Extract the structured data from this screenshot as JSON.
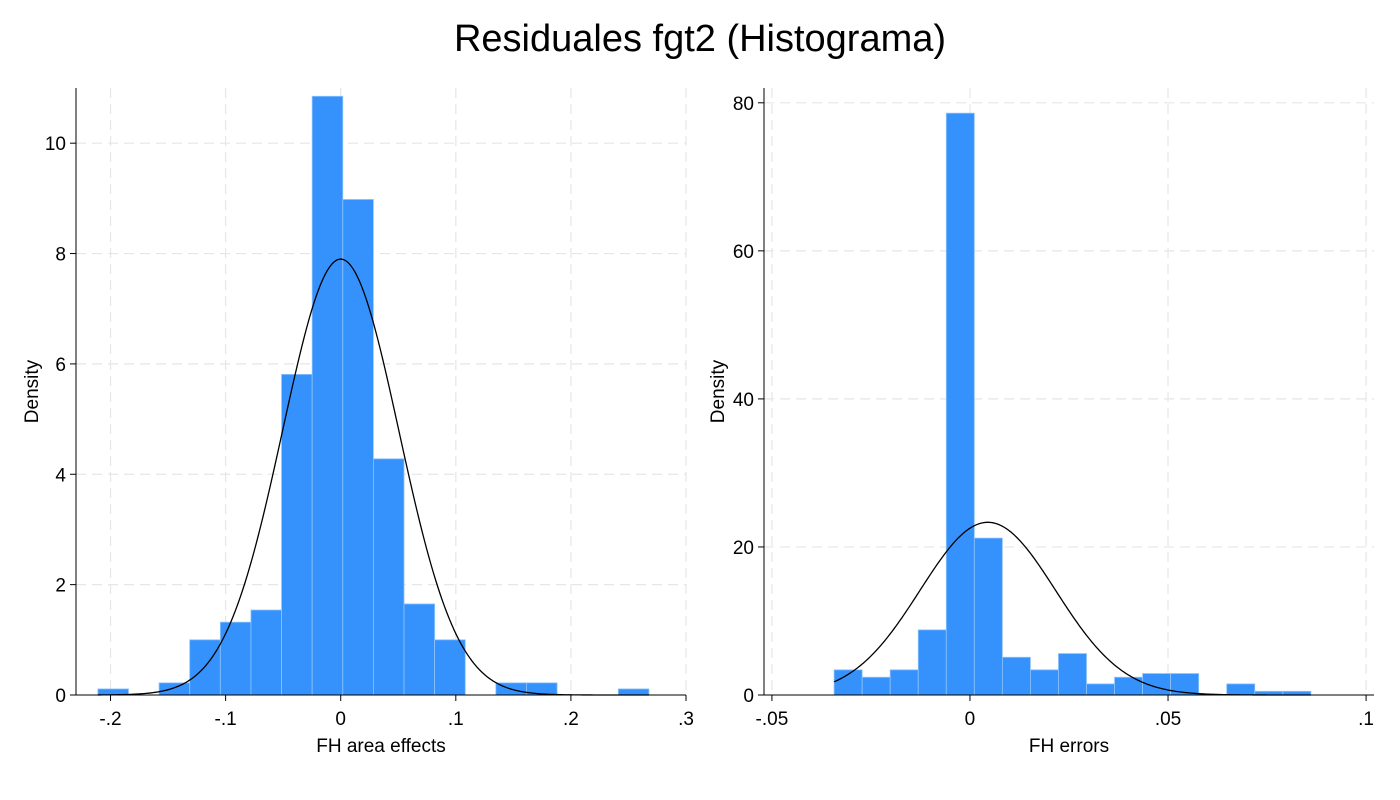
{
  "title": "Residuales fgt2 (Histograma)",
  "colors": {
    "bar": "#3592fd",
    "bar_edge": "#8ec3fb",
    "curve": "#000000",
    "grid": "#e6e6e6",
    "axis": "#000000"
  },
  "chart_data": [
    {
      "type": "histogram",
      "xlabel": "FH area effects",
      "ylabel": "Density",
      "xlim": [
        -0.23,
        0.3
      ],
      "ylim": [
        0,
        11
      ],
      "xticks": [
        -0.2,
        -0.1,
        0,
        0.1,
        0.2,
        0.3
      ],
      "xtick_labels": [
        "-.2",
        "-.1",
        "0",
        ".1",
        ".2",
        ".3"
      ],
      "yticks": [
        0,
        2,
        4,
        6,
        8,
        10
      ],
      "ytick_labels": [
        "0",
        "2",
        "4",
        "6",
        "8",
        "10"
      ],
      "grid": true,
      "bin_start": -0.211,
      "bin_width": 0.0266,
      "densities": [
        0.11,
        0,
        0.22,
        1.0,
        1.32,
        1.54,
        5.81,
        10.85,
        8.98,
        4.28,
        1.65,
        1.0,
        0,
        0.22,
        0.22,
        0,
        0,
        0.11
      ],
      "normal_curve": {
        "mean": 0.0,
        "sd": 0.0505
      }
    },
    {
      "type": "histogram",
      "xlabel": "FH errors",
      "ylabel": "Density",
      "xlim": [
        -0.052,
        0.102
      ],
      "ylim": [
        0,
        82
      ],
      "xticks": [
        -0.05,
        0,
        0.05,
        0.1
      ],
      "xtick_labels": [
        "-.05",
        "0",
        ".05",
        ".1"
      ],
      "yticks": [
        0,
        20,
        40,
        60,
        80
      ],
      "ytick_labels": [
        "0",
        "20",
        "40",
        "60",
        "80"
      ],
      "grid": true,
      "bin_start": -0.0343,
      "bin_width": 0.00708,
      "densities": [
        3.4,
        2.4,
        3.4,
        8.8,
        78.6,
        21.2,
        5.1,
        3.4,
        5.6,
        1.5,
        2.4,
        2.9,
        2.9,
        0,
        1.5,
        0.5,
        0.5
      ],
      "normal_curve": {
        "mean": 0.0045,
        "sd": 0.0171
      }
    }
  ]
}
